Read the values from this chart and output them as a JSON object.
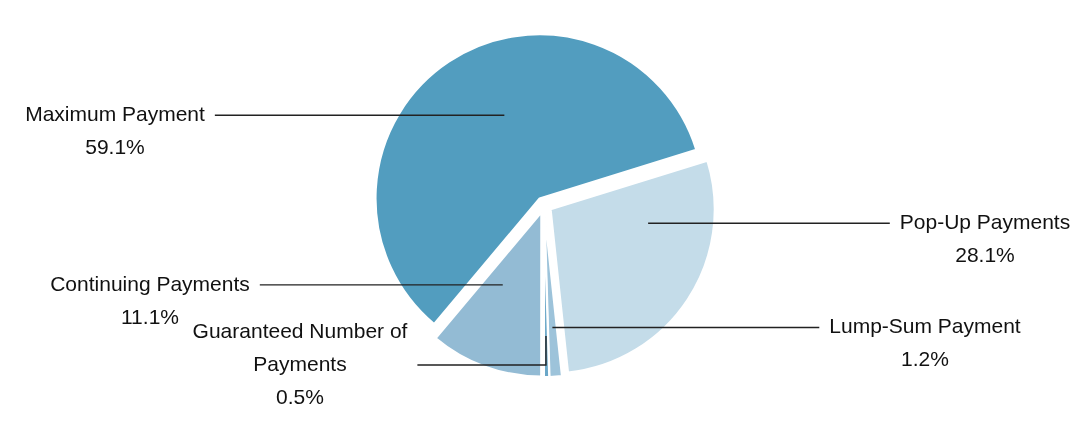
{
  "chart_data": {
    "type": "pie",
    "categories": [
      "Maximum Payment",
      "Pop-Up Payments",
      "Lump-Sum Payment",
      "Guaranteed Number of Payments",
      "Continuing Payments"
    ],
    "values": [
      59.1,
      28.1,
      1.2,
      0.5,
      11.1
    ],
    "colors": [
      "#529dbf",
      "#c4dce9",
      "#9dc3da",
      "#6aa7c8",
      "#93bbd4"
    ],
    "value_labels": [
      "59.1%",
      "28.1%",
      "1.2%",
      "0.5%",
      "11.1%"
    ]
  }
}
